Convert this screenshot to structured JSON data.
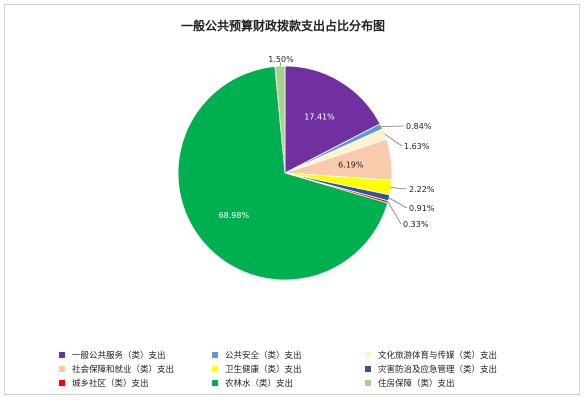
{
  "chart_data": {
    "type": "pie",
    "title": "一般公共预算财政拨款支出占比分布图",
    "slices": [
      {
        "name": "一般公共服务（类）支出",
        "value": 17.41,
        "label": "17.41%",
        "color": "#7030A0"
      },
      {
        "name": "公共安全（类）支出",
        "value": 0.84,
        "label": "0.84%",
        "color": "#5B9BD5"
      },
      {
        "name": "文化旅游体育与传媒（类）支出",
        "value": 1.63,
        "label": "1.63%",
        "color": "#FFF2CC"
      },
      {
        "name": "社会保障和就业（类）支出",
        "value": 6.19,
        "label": "6.19%",
        "color": "#F8CBAD"
      },
      {
        "name": "卫生健康（类）支出",
        "value": 2.22,
        "label": "2.22%",
        "color": "#FFFF00"
      },
      {
        "name": "灾害防治及应急管理（类）支出",
        "value": 0.91,
        "label": "0.91%",
        "color": "#2F5597"
      },
      {
        "name": "城乡社区（类）支出",
        "value": 0.33,
        "label": "0.33%",
        "color": "#FF0000"
      },
      {
        "name": "农林水（类）支出",
        "value": 68.98,
        "label": "68.98%",
        "color": "#00B050"
      },
      {
        "name": "住房保障（类）支出",
        "value": 1.5,
        "label": "1.50%",
        "color": "#A9D08E"
      }
    ],
    "legend_position": "bottom"
  }
}
